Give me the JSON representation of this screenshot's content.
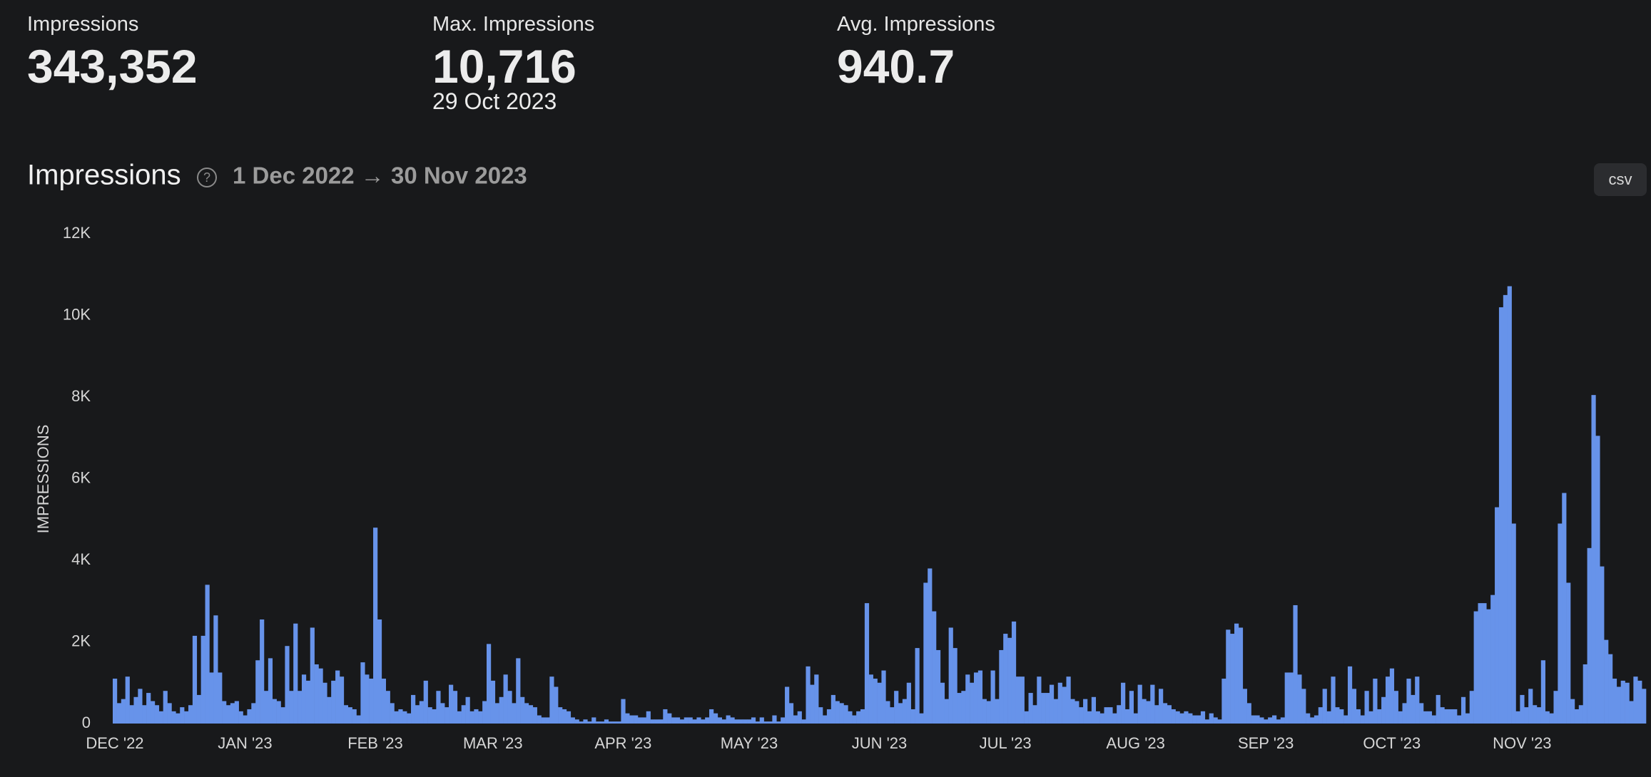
{
  "stats": [
    {
      "label": "Impressions",
      "value": "343,352"
    },
    {
      "label": "Max. Impressions",
      "value": "10,716",
      "sub": "29 Oct 2023"
    },
    {
      "label": "Avg. Impressions",
      "value": "940.7"
    }
  ],
  "csv_button": "csv",
  "chart_data": {
    "type": "bar",
    "title": "Impressions",
    "subtitle": "1 Dec 2022 → 30 Nov 2023",
    "y_label": "IMPRESSIONS",
    "color": "#6793ea",
    "ylim": [
      0,
      12000
    ],
    "yticks": [
      0,
      {
        "value": 2000,
        "label": "2K"
      },
      {
        "value": 4000,
        "label": "4K"
      },
      {
        "value": 6000,
        "label": "6K"
      },
      {
        "value": 8000,
        "label": "8K"
      },
      {
        "value": 10000,
        "label": "10K"
      },
      {
        "value": 12000,
        "label": "12K"
      }
    ],
    "grid": false,
    "categories": [
      "DEC '22",
      null,
      null,
      null,
      null,
      null,
      null,
      null,
      null,
      null,
      null,
      null,
      null,
      null,
      null,
      null,
      null,
      null,
      null,
      null,
      null,
      null,
      null,
      null,
      null,
      null,
      null,
      null,
      null,
      null,
      null,
      "JAN '23",
      null,
      null,
      null,
      null,
      null,
      null,
      null,
      null,
      null,
      null,
      null,
      null,
      null,
      null,
      null,
      null,
      null,
      null,
      null,
      null,
      null,
      null,
      null,
      null,
      null,
      null,
      null,
      null,
      null,
      null,
      "FEB '23",
      null,
      null,
      null,
      null,
      null,
      null,
      null,
      null,
      null,
      null,
      null,
      null,
      null,
      null,
      null,
      null,
      null,
      null,
      null,
      null,
      null,
      null,
      null,
      null,
      null,
      null,
      null,
      "MAR '23",
      null,
      null,
      null,
      null,
      null,
      null,
      null,
      null,
      null,
      null,
      null,
      null,
      null,
      null,
      null,
      null,
      null,
      null,
      null,
      null,
      null,
      null,
      null,
      null,
      null,
      null,
      null,
      null,
      null,
      null,
      "APR '23",
      null,
      null,
      null,
      null,
      null,
      null,
      null,
      null,
      null,
      null,
      null,
      null,
      null,
      null,
      null,
      null,
      null,
      null,
      null,
      null,
      null,
      null,
      null,
      null,
      null,
      null,
      null,
      null,
      null,
      "MAY '23",
      null,
      null,
      null,
      null,
      null,
      null,
      null,
      null,
      null,
      null,
      null,
      null,
      null,
      null,
      null,
      null,
      null,
      null,
      null,
      null,
      null,
      null,
      null,
      null,
      null,
      null,
      null,
      null,
      null,
      null,
      "JUN '23",
      null,
      null,
      null,
      null,
      null,
      null,
      null,
      null,
      null,
      null,
      null,
      null,
      null,
      null,
      null,
      null,
      null,
      null,
      null,
      null,
      null,
      null,
      null,
      null,
      null,
      null,
      null,
      null,
      null,
      "JUL '23",
      null,
      null,
      null,
      null,
      null,
      null,
      null,
      null,
      null,
      null,
      null,
      null,
      null,
      null,
      null,
      null,
      null,
      null,
      null,
      null,
      null,
      null,
      null,
      null,
      null,
      null,
      null,
      null,
      null,
      null,
      "AUG '23",
      null,
      null,
      null,
      null,
      null,
      null,
      null,
      null,
      null,
      null,
      null,
      null,
      null,
      null,
      null,
      null,
      null,
      null,
      null,
      null,
      null,
      null,
      null,
      null,
      null,
      null,
      null,
      null,
      null,
      null,
      "SEP '23",
      null,
      null,
      null,
      null,
      null,
      null,
      null,
      null,
      null,
      null,
      null,
      null,
      null,
      null,
      null,
      null,
      null,
      null,
      null,
      null,
      null,
      null,
      null,
      null,
      null,
      null,
      null,
      null,
      null,
      "OCT '23",
      null,
      null,
      null,
      null,
      null,
      null,
      null,
      null,
      null,
      null,
      null,
      null,
      null,
      null,
      null,
      null,
      null,
      null,
      null,
      null,
      null,
      null,
      null,
      null,
      null,
      null,
      null,
      null,
      null,
      null,
      "NOV '23",
      null,
      null,
      null,
      null,
      null,
      null,
      null,
      null,
      null,
      null,
      null,
      null,
      null,
      null,
      null,
      null,
      null,
      null,
      null,
      null,
      null,
      null,
      null,
      null,
      null,
      null,
      null,
      null,
      null
    ],
    "values": [
      1100,
      500,
      600,
      1150,
      450,
      650,
      850,
      450,
      750,
      550,
      450,
      300,
      800,
      500,
      300,
      250,
      400,
      300,
      450,
      2150,
      700,
      2150,
      3400,
      1250,
      2650,
      1250,
      550,
      450,
      500,
      550,
      300,
      200,
      350,
      500,
      1550,
      2550,
      800,
      1600,
      600,
      550,
      400,
      1900,
      800,
      2450,
      800,
      1200,
      1050,
      2350,
      1450,
      1350,
      1000,
      650,
      1050,
      1300,
      1150,
      450,
      400,
      350,
      200,
      1500,
      1200,
      1100,
      4800,
      2550,
      1100,
      800,
      500,
      300,
      350,
      300,
      250,
      700,
      450,
      550,
      1050,
      400,
      350,
      800,
      500,
      400,
      950,
      800,
      300,
      450,
      650,
      300,
      350,
      300,
      550,
      1950,
      1050,
      500,
      650,
      1200,
      800,
      500,
      1600,
      650,
      500,
      450,
      400,
      200,
      150,
      150,
      1150,
      900,
      400,
      350,
      300,
      150,
      100,
      50,
      100,
      50,
      150,
      50,
      50,
      100,
      50,
      50,
      50,
      600,
      250,
      200,
      200,
      150,
      150,
      300,
      100,
      100,
      100,
      350,
      250,
      150,
      150,
      100,
      150,
      150,
      100,
      150,
      100,
      150,
      350,
      250,
      150,
      100,
      200,
      150,
      100,
      100,
      100,
      100,
      150,
      50,
      150,
      50,
      50,
      200,
      50,
      150,
      900,
      500,
      200,
      300,
      100,
      1400,
      950,
      1200,
      400,
      200,
      350,
      700,
      550,
      500,
      450,
      300,
      200,
      300,
      350,
      2950,
      1200,
      1100,
      1000,
      1300,
      550,
      400,
      800,
      500,
      600,
      1000,
      350,
      1850,
      250,
      3450,
      3800,
      2750,
      1800,
      1000,
      600,
      2350,
      1850,
      750,
      800,
      1200,
      1000,
      1250,
      1300,
      600,
      550,
      1300,
      600,
      1800,
      2200,
      2100,
      2500,
      1150,
      1150,
      300,
      750,
      450,
      1150,
      750,
      750,
      950,
      600,
      1000,
      900,
      1150,
      600,
      550,
      400,
      600,
      300,
      650,
      300,
      250,
      400,
      400,
      250,
      450,
      1000,
      350,
      800,
      250,
      950,
      600,
      550,
      950,
      450,
      850,
      500,
      450,
      350,
      300,
      250,
      300,
      250,
      200,
      200,
      300,
      100,
      250,
      150,
      100,
      1100,
      2300,
      2200,
      2450,
      2350,
      850,
      500,
      200,
      200,
      150,
      100,
      150,
      200,
      100,
      150,
      1250,
      1250,
      2900,
      1200,
      850,
      250,
      150,
      200,
      400,
      850,
      300,
      1150,
      400,
      350,
      200,
      1400,
      850,
      350,
      200,
      800,
      300,
      1100,
      350,
      650,
      1150,
      1350,
      800,
      300,
      500,
      1100,
      700,
      1150,
      500,
      300,
      300,
      200,
      700,
      400,
      350,
      350,
      350,
      200,
      650,
      250,
      800,
      2750,
      2950,
      2950,
      2800,
      3150,
      5300,
      10200,
      10500,
      10716,
      4900,
      300,
      700,
      400,
      850,
      450,
      400,
      1550,
      300,
      250,
      800,
      4900,
      5650,
      3450,
      600,
      350,
      450,
      1450,
      4300,
      8050,
      7050,
      3850,
      2050,
      1700,
      1100,
      900,
      1050,
      1000,
      550,
      1150,
      1050,
      850
    ]
  }
}
